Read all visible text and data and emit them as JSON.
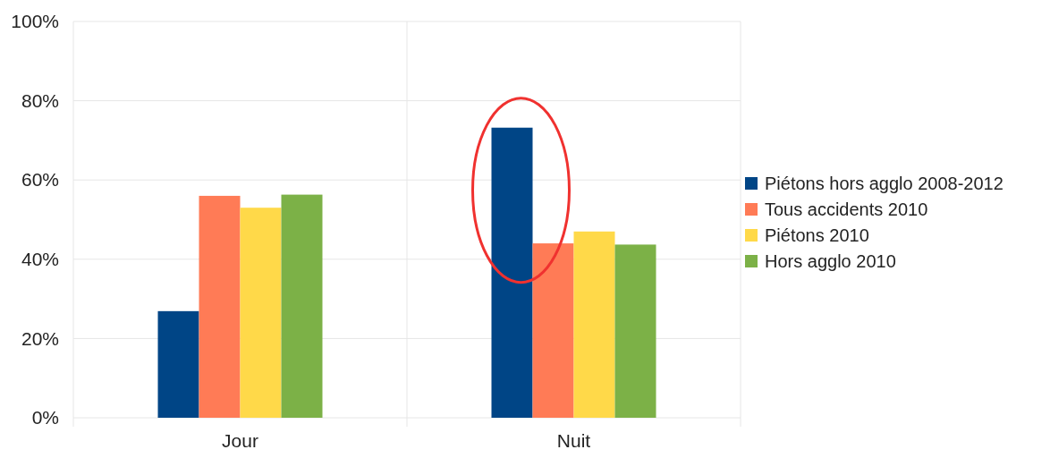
{
  "chart_data": {
    "type": "bar",
    "categories": [
      "Jour",
      "Nuit"
    ],
    "series": [
      {
        "name": "Piétons hors agglo 2008-2012",
        "color": "#004586",
        "values": [
          26.9,
          73.2
        ]
      },
      {
        "name": "Tous accidents 2010",
        "color": "#ff7b56",
        "values": [
          56.0,
          44.0
        ]
      },
      {
        "name": "Piétons 2010",
        "color": "#ffd949",
        "values": [
          53.0,
          47.0
        ]
      },
      {
        "name": "Hors agglo 2010",
        "color": "#7cb147",
        "values": [
          56.3,
          43.7
        ]
      }
    ],
    "ylim": [
      0,
      100
    ],
    "yticks": [
      {
        "value": 0,
        "label": "0%"
      },
      {
        "value": 20,
        "label": "20%"
      },
      {
        "value": 40,
        "label": "40%"
      },
      {
        "value": 60,
        "label": "60%"
      },
      {
        "value": 80,
        "label": "80%"
      },
      {
        "value": 100,
        "label": "100%"
      }
    ],
    "grid": "y",
    "legend": "right"
  }
}
